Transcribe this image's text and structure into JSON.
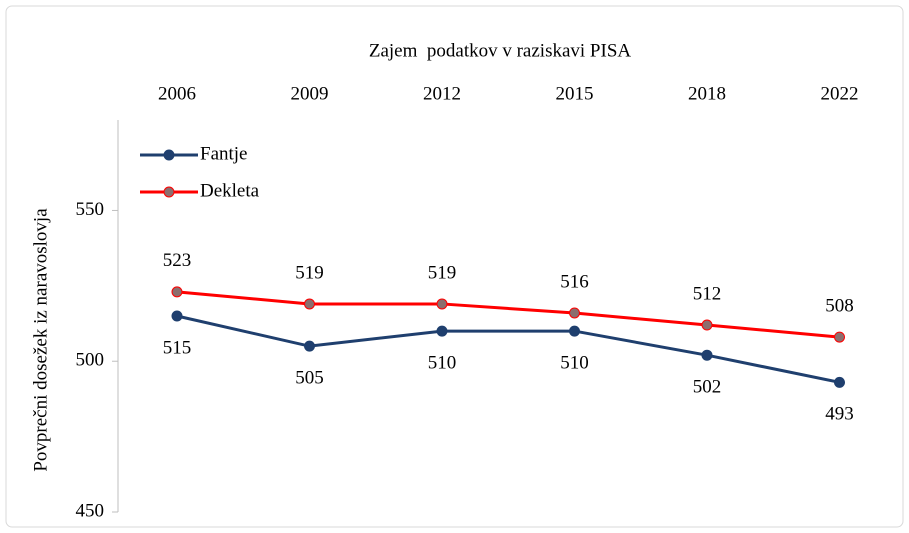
{
  "chart_data": {
    "type": "line",
    "xlabel": "Zajem  podatkov v raziskavi PISA",
    "ylabel": "Povprečni dosežek iz naravoslovja",
    "categories": [
      "2006",
      "2009",
      "2012",
      "2015",
      "2018",
      "2022"
    ],
    "series": [
      {
        "name": "Fantje",
        "color": "#1f3f6e",
        "marker_color": "#1f3f6e",
        "values": [
          515,
          505,
          510,
          510,
          502,
          493
        ]
      },
      {
        "name": "Dekleta",
        "color": "#ff0000",
        "marker_color": "#8c6e6e",
        "values": [
          523,
          519,
          519,
          516,
          512,
          508
        ]
      }
    ],
    "ylim": [
      450,
      580
    ],
    "yticks": [
      450,
      500,
      550
    ],
    "grid": false,
    "legend": "upper left"
  }
}
